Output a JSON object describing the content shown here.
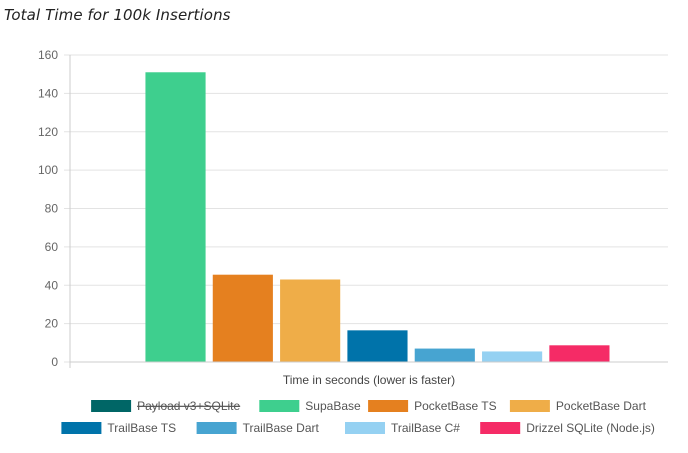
{
  "title": "Total Time for 100k Insertions",
  "chart_data": {
    "type": "bar",
    "title": "Total Time for 100k Insertions",
    "xlabel": "Time in seconds (lower is faster)",
    "ylabel": "",
    "ylim": [
      0,
      160
    ],
    "yticks": [
      "0",
      "20",
      "40",
      "60",
      "80",
      "100",
      "120",
      "140",
      "160"
    ],
    "grid": true,
    "legend_position": "bottom",
    "series": [
      {
        "name": "Payload v3+SQLite",
        "value": null,
        "color": "#006666",
        "hidden": true
      },
      {
        "name": "SupaBase",
        "value": 151,
        "color": "#3ecf8e",
        "hidden": false
      },
      {
        "name": "PocketBase TS",
        "value": 45.5,
        "color": "#e5801f",
        "hidden": false
      },
      {
        "name": "PocketBase Dart",
        "value": 43,
        "color": "#efad48",
        "hidden": false
      },
      {
        "name": "TrailBase TS",
        "value": 16.5,
        "color": "#0073aa",
        "hidden": false
      },
      {
        "name": "TrailBase Dart",
        "value": 7,
        "color": "#47a4d1",
        "hidden": false
      },
      {
        "name": "TrailBase C#",
        "value": 5.5,
        "color": "#95d1f2",
        "hidden": false
      },
      {
        "name": "Drizzel SQLite (Node.js)",
        "value": 8.7,
        "color": "#f52b66",
        "hidden": false
      }
    ]
  }
}
